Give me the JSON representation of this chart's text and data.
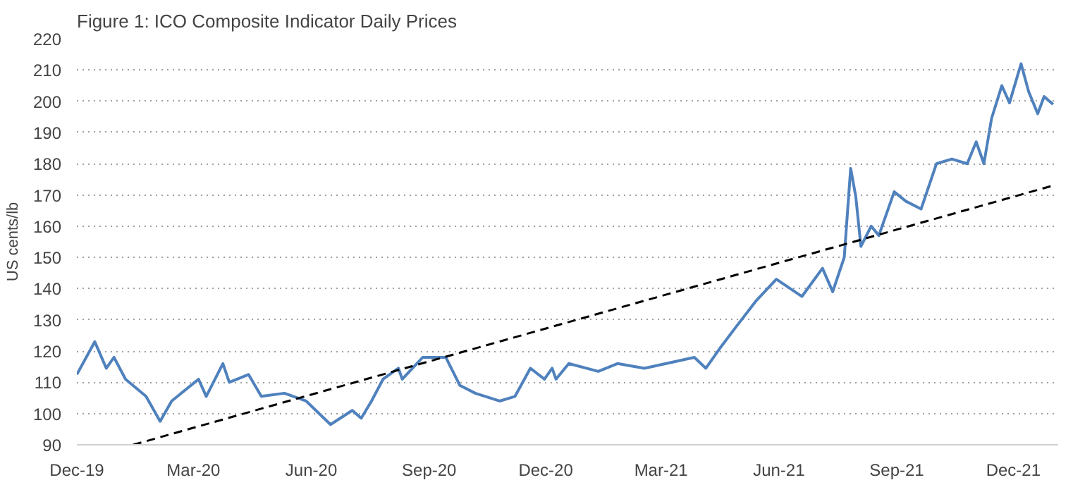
{
  "chart_data": {
    "type": "line",
    "title": "Figure 1: ICO Composite Indicator Daily Prices",
    "ylabel": "US cents/lb",
    "xlim": [
      "2019-12-01",
      "2022-01-05"
    ],
    "xticks": [
      {
        "value": "2019-12-01",
        "label": "Dec-19"
      },
      {
        "value": "2020-03-01",
        "label": "Mar-20"
      },
      {
        "value": "2020-06-01",
        "label": "Jun-20"
      },
      {
        "value": "2020-09-01",
        "label": "Sep-20"
      },
      {
        "value": "2020-12-01",
        "label": "Dec-20"
      },
      {
        "value": "2021-03-01",
        "label": "Mar-21"
      },
      {
        "value": "2021-06-01",
        "label": "Jun-21"
      },
      {
        "value": "2021-09-01",
        "label": "Sep-21"
      },
      {
        "value": "2021-12-01",
        "label": "Dec-21"
      }
    ],
    "ylim": [
      90,
      220
    ],
    "yticks": [
      90,
      100,
      110,
      120,
      130,
      140,
      150,
      160,
      170,
      180,
      190,
      200,
      210,
      220
    ],
    "grid": "y",
    "series": [
      {
        "color": "#4f81bd",
        "line_style": "solid",
        "x": [
          "2019-12-01",
          "2019-12-15",
          "2019-12-24",
          "2019-12-30",
          "2020-01-08",
          "2020-01-24",
          "2020-02-04",
          "2020-02-13",
          "2020-03-05",
          "2020-03-11",
          "2020-03-24",
          "2020-03-29",
          "2020-04-13",
          "2020-04-23",
          "2020-05-11",
          "2020-05-28",
          "2020-06-16",
          "2020-07-03",
          "2020-07-10",
          "2020-07-18",
          "2020-07-27",
          "2020-08-08",
          "2020-08-11",
          "2020-08-27",
          "2020-09-14",
          "2020-09-25",
          "2020-10-07",
          "2020-10-26",
          "2020-11-07",
          "2020-11-19",
          "2020-11-30",
          "2020-12-06",
          "2020-12-09",
          "2020-12-19",
          "2021-01-11",
          "2021-01-26",
          "2021-02-16",
          "2021-03-27",
          "2021-04-05",
          "2021-04-17",
          "2021-04-29",
          "2021-05-14",
          "2021-05-30",
          "2021-06-19",
          "2021-07-05",
          "2021-07-13",
          "2021-07-22",
          "2021-07-27",
          "2021-07-31",
          "2021-08-04",
          "2021-08-12",
          "2021-08-18",
          "2021-08-30",
          "2021-09-08",
          "2021-09-20",
          "2021-10-02",
          "2021-10-14",
          "2021-10-26",
          "2021-11-02",
          "2021-11-08",
          "2021-11-14",
          "2021-11-22",
          "2021-11-28",
          "2021-12-07",
          "2021-12-13",
          "2021-12-20",
          "2021-12-25",
          "2022-01-01"
        ],
        "values": [
          112.5,
          123,
          114.5,
          118,
          111,
          105.5,
          97.5,
          104,
          111,
          105.5,
          116,
          110,
          112.5,
          105.5,
          106.5,
          104,
          96.5,
          101,
          98.5,
          104,
          111,
          114.5,
          111,
          118,
          118,
          109,
          106.5,
          104,
          105.5,
          114.5,
          111,
          114.5,
          111,
          116,
          113.5,
          116,
          114.5,
          118,
          114.5,
          121.5,
          128,
          136,
          143,
          137.5,
          146.5,
          139,
          150,
          178.5,
          169.5,
          153.5,
          160,
          157,
          171,
          168,
          165.5,
          180,
          181.5,
          180,
          187,
          180,
          194.5,
          205,
          199.5,
          212,
          203,
          196,
          201.5,
          199
        ]
      },
      {
        "type": "line",
        "color": "#000000",
        "line_style": "dashed",
        "x": [
          "2020-01-14",
          "2022-01-01"
        ],
        "values": [
          90,
          173
        ]
      }
    ]
  }
}
